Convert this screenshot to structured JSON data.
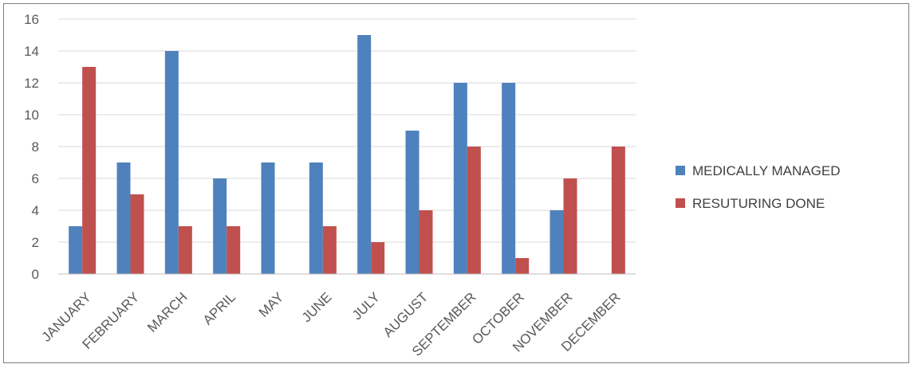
{
  "chart_data": {
    "type": "bar",
    "title": "",
    "xlabel": "",
    "ylabel": "",
    "ylim": [
      0,
      16
    ],
    "yticks": [
      0,
      2,
      4,
      6,
      8,
      10,
      12,
      14,
      16
    ],
    "grid": true,
    "legend_position": "right",
    "categories": [
      "JANUARY",
      "FEBRUARY",
      "MARCH",
      "APRIL",
      "MAY",
      "JUNE",
      "JULY",
      "AUGUST",
      "SEPTEMBER",
      "OCTOBER",
      "NOVEMBER",
      "DECEMBER"
    ],
    "series": [
      {
        "name": "MEDICALLY MANAGED",
        "color": "#4f81bd",
        "values": [
          3,
          7,
          14,
          6,
          7,
          7,
          15,
          9,
          12,
          12,
          4,
          0
        ]
      },
      {
        "name": "RESUTURING DONE",
        "color": "#c0504d",
        "values": [
          13,
          5,
          3,
          3,
          0,
          3,
          2,
          4,
          8,
          1,
          6,
          8
        ]
      }
    ]
  }
}
